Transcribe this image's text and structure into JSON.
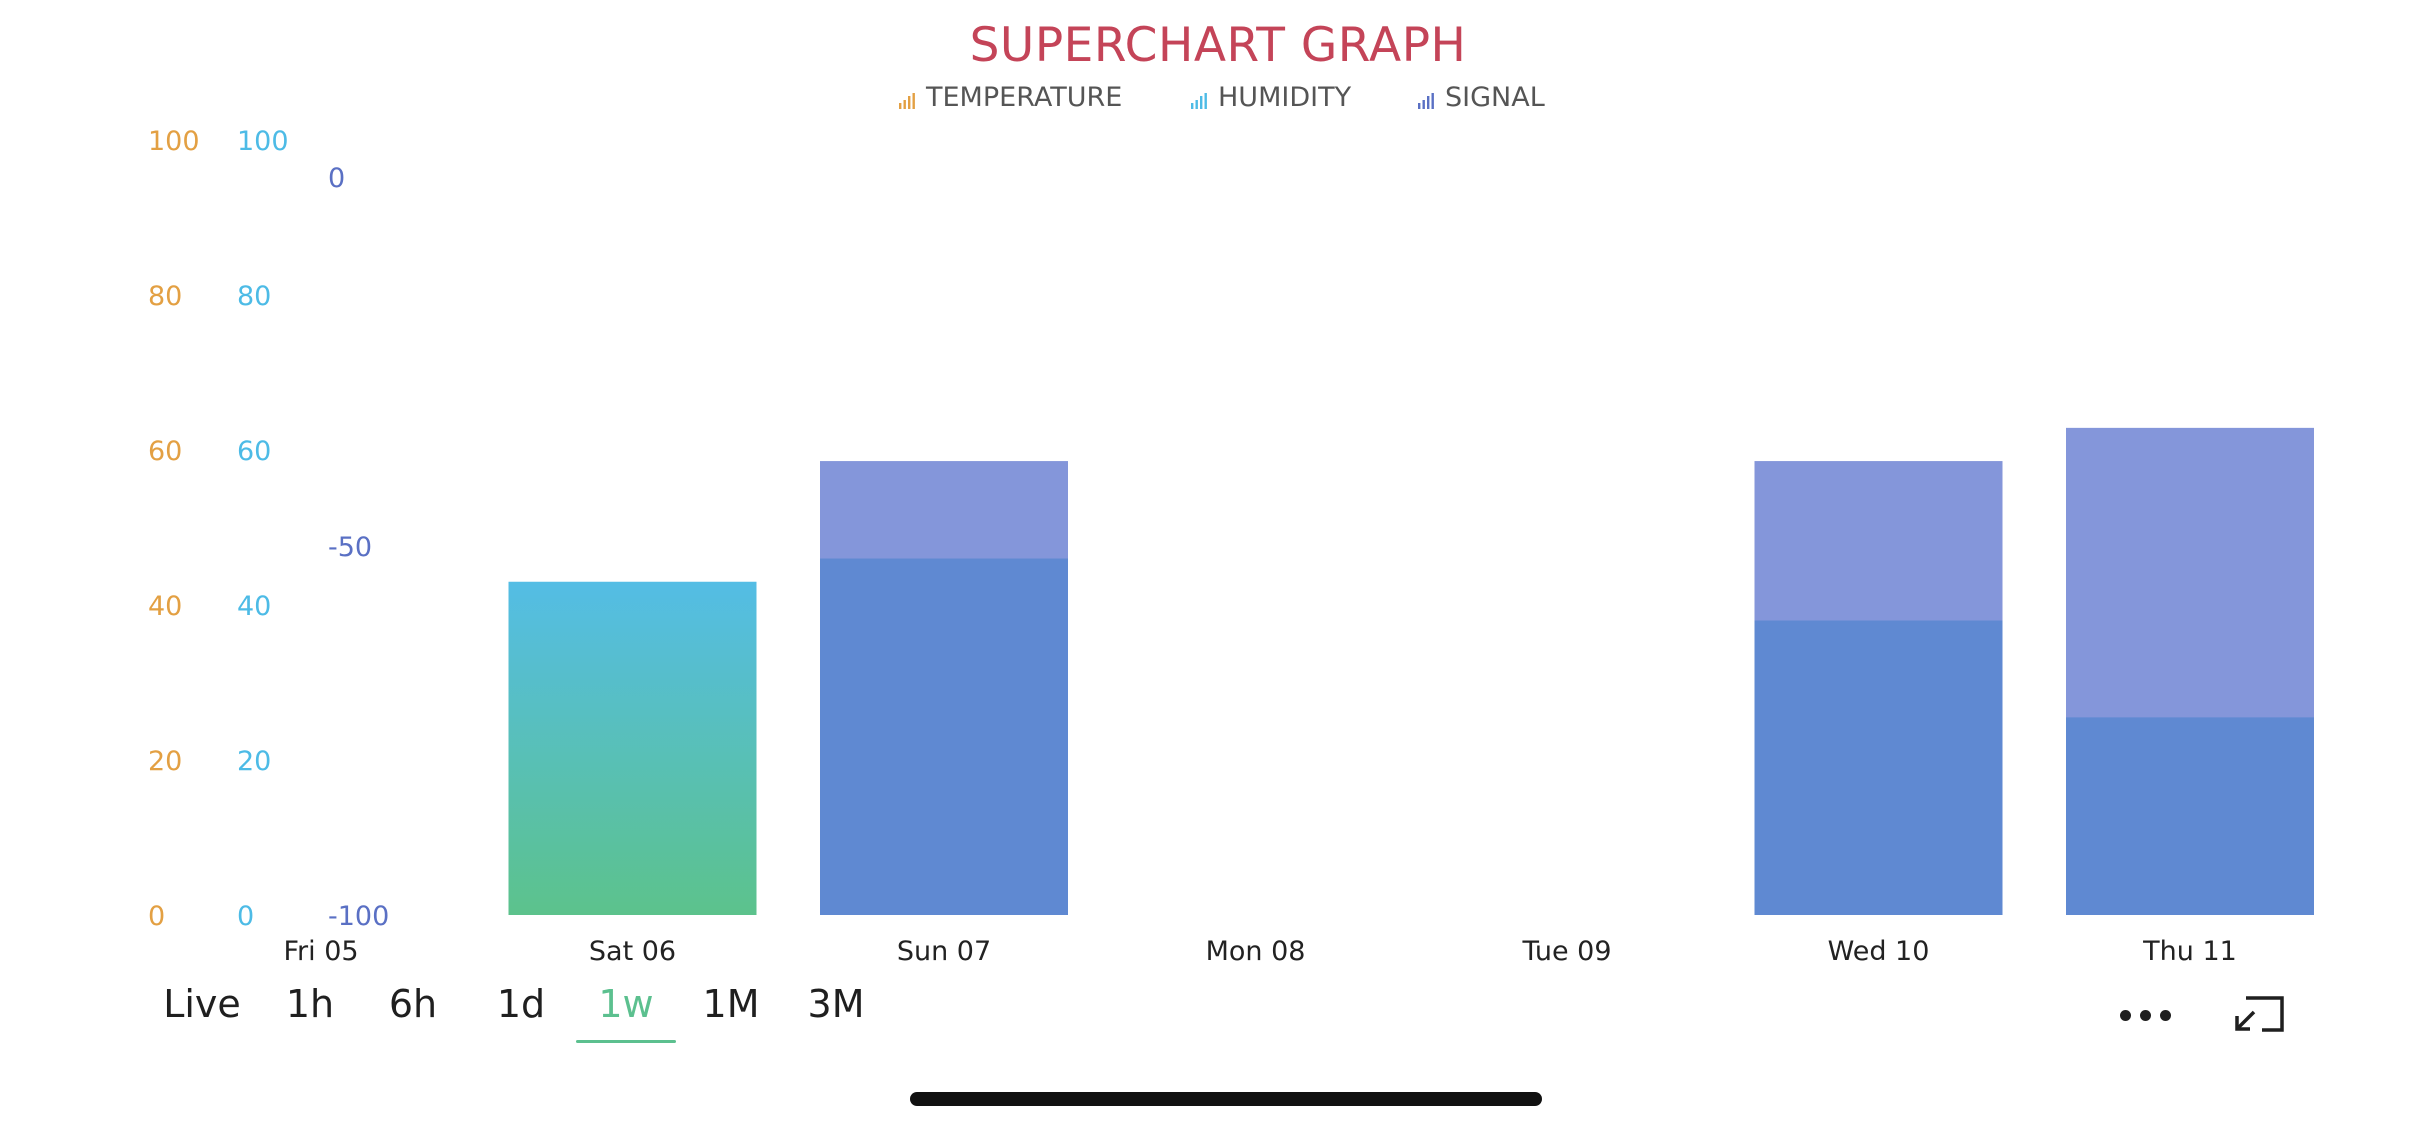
{
  "chart_data": {
    "type": "bar",
    "title": "SUPERCHART GRAPH",
    "legend": [
      {
        "name": "TEMPERATURE",
        "color": "#e3a043"
      },
      {
        "name": "HUMIDITY",
        "color": "#4dbbe6"
      },
      {
        "name": "SIGNAL",
        "color": "#5a70c4"
      }
    ],
    "categories": [
      "Fri 05",
      "Sat 06",
      "Sun 07",
      "Mon 08",
      "Tue 09",
      "Wed 10",
      "Thu 11"
    ],
    "axes": [
      {
        "name": "TEMPERATURE",
        "ylim": [
          0,
          100
        ],
        "ticks": [
          "100",
          "80",
          "60",
          "40",
          "20",
          "0"
        ],
        "color": "#e3a043"
      },
      {
        "name": "HUMIDITY",
        "ylim": [
          0,
          100
        ],
        "ticks": [
          "100",
          "80",
          "60",
          "40",
          "20",
          "0"
        ],
        "color": "#4dbbe6"
      },
      {
        "name": "SIGNAL",
        "ylim": [
          -100,
          5
        ],
        "ticks": [
          "0",
          "-50",
          "-100"
        ],
        "color": "#5a70c4"
      }
    ],
    "series": [
      {
        "name": "HUMIDITY",
        "axis": "HUMIDITY",
        "values": [
          null,
          43,
          46,
          null,
          null,
          38,
          25.5
        ]
      },
      {
        "name": "SIGNAL",
        "axis": "SIGNAL",
        "values": [
          null,
          null,
          -38.5,
          null,
          null,
          -38.5,
          -34
        ]
      }
    ],
    "grid": false,
    "legend_position": "top-center"
  },
  "time_range": {
    "options": [
      "Live",
      "1h",
      "6h",
      "1d",
      "1w",
      "1M",
      "3M"
    ],
    "selected": "1w"
  },
  "icons": {
    "legend": "bar-chart-icon",
    "more": "more-horizontal-icon",
    "fullscreen": "exit-fullscreen-icon"
  }
}
